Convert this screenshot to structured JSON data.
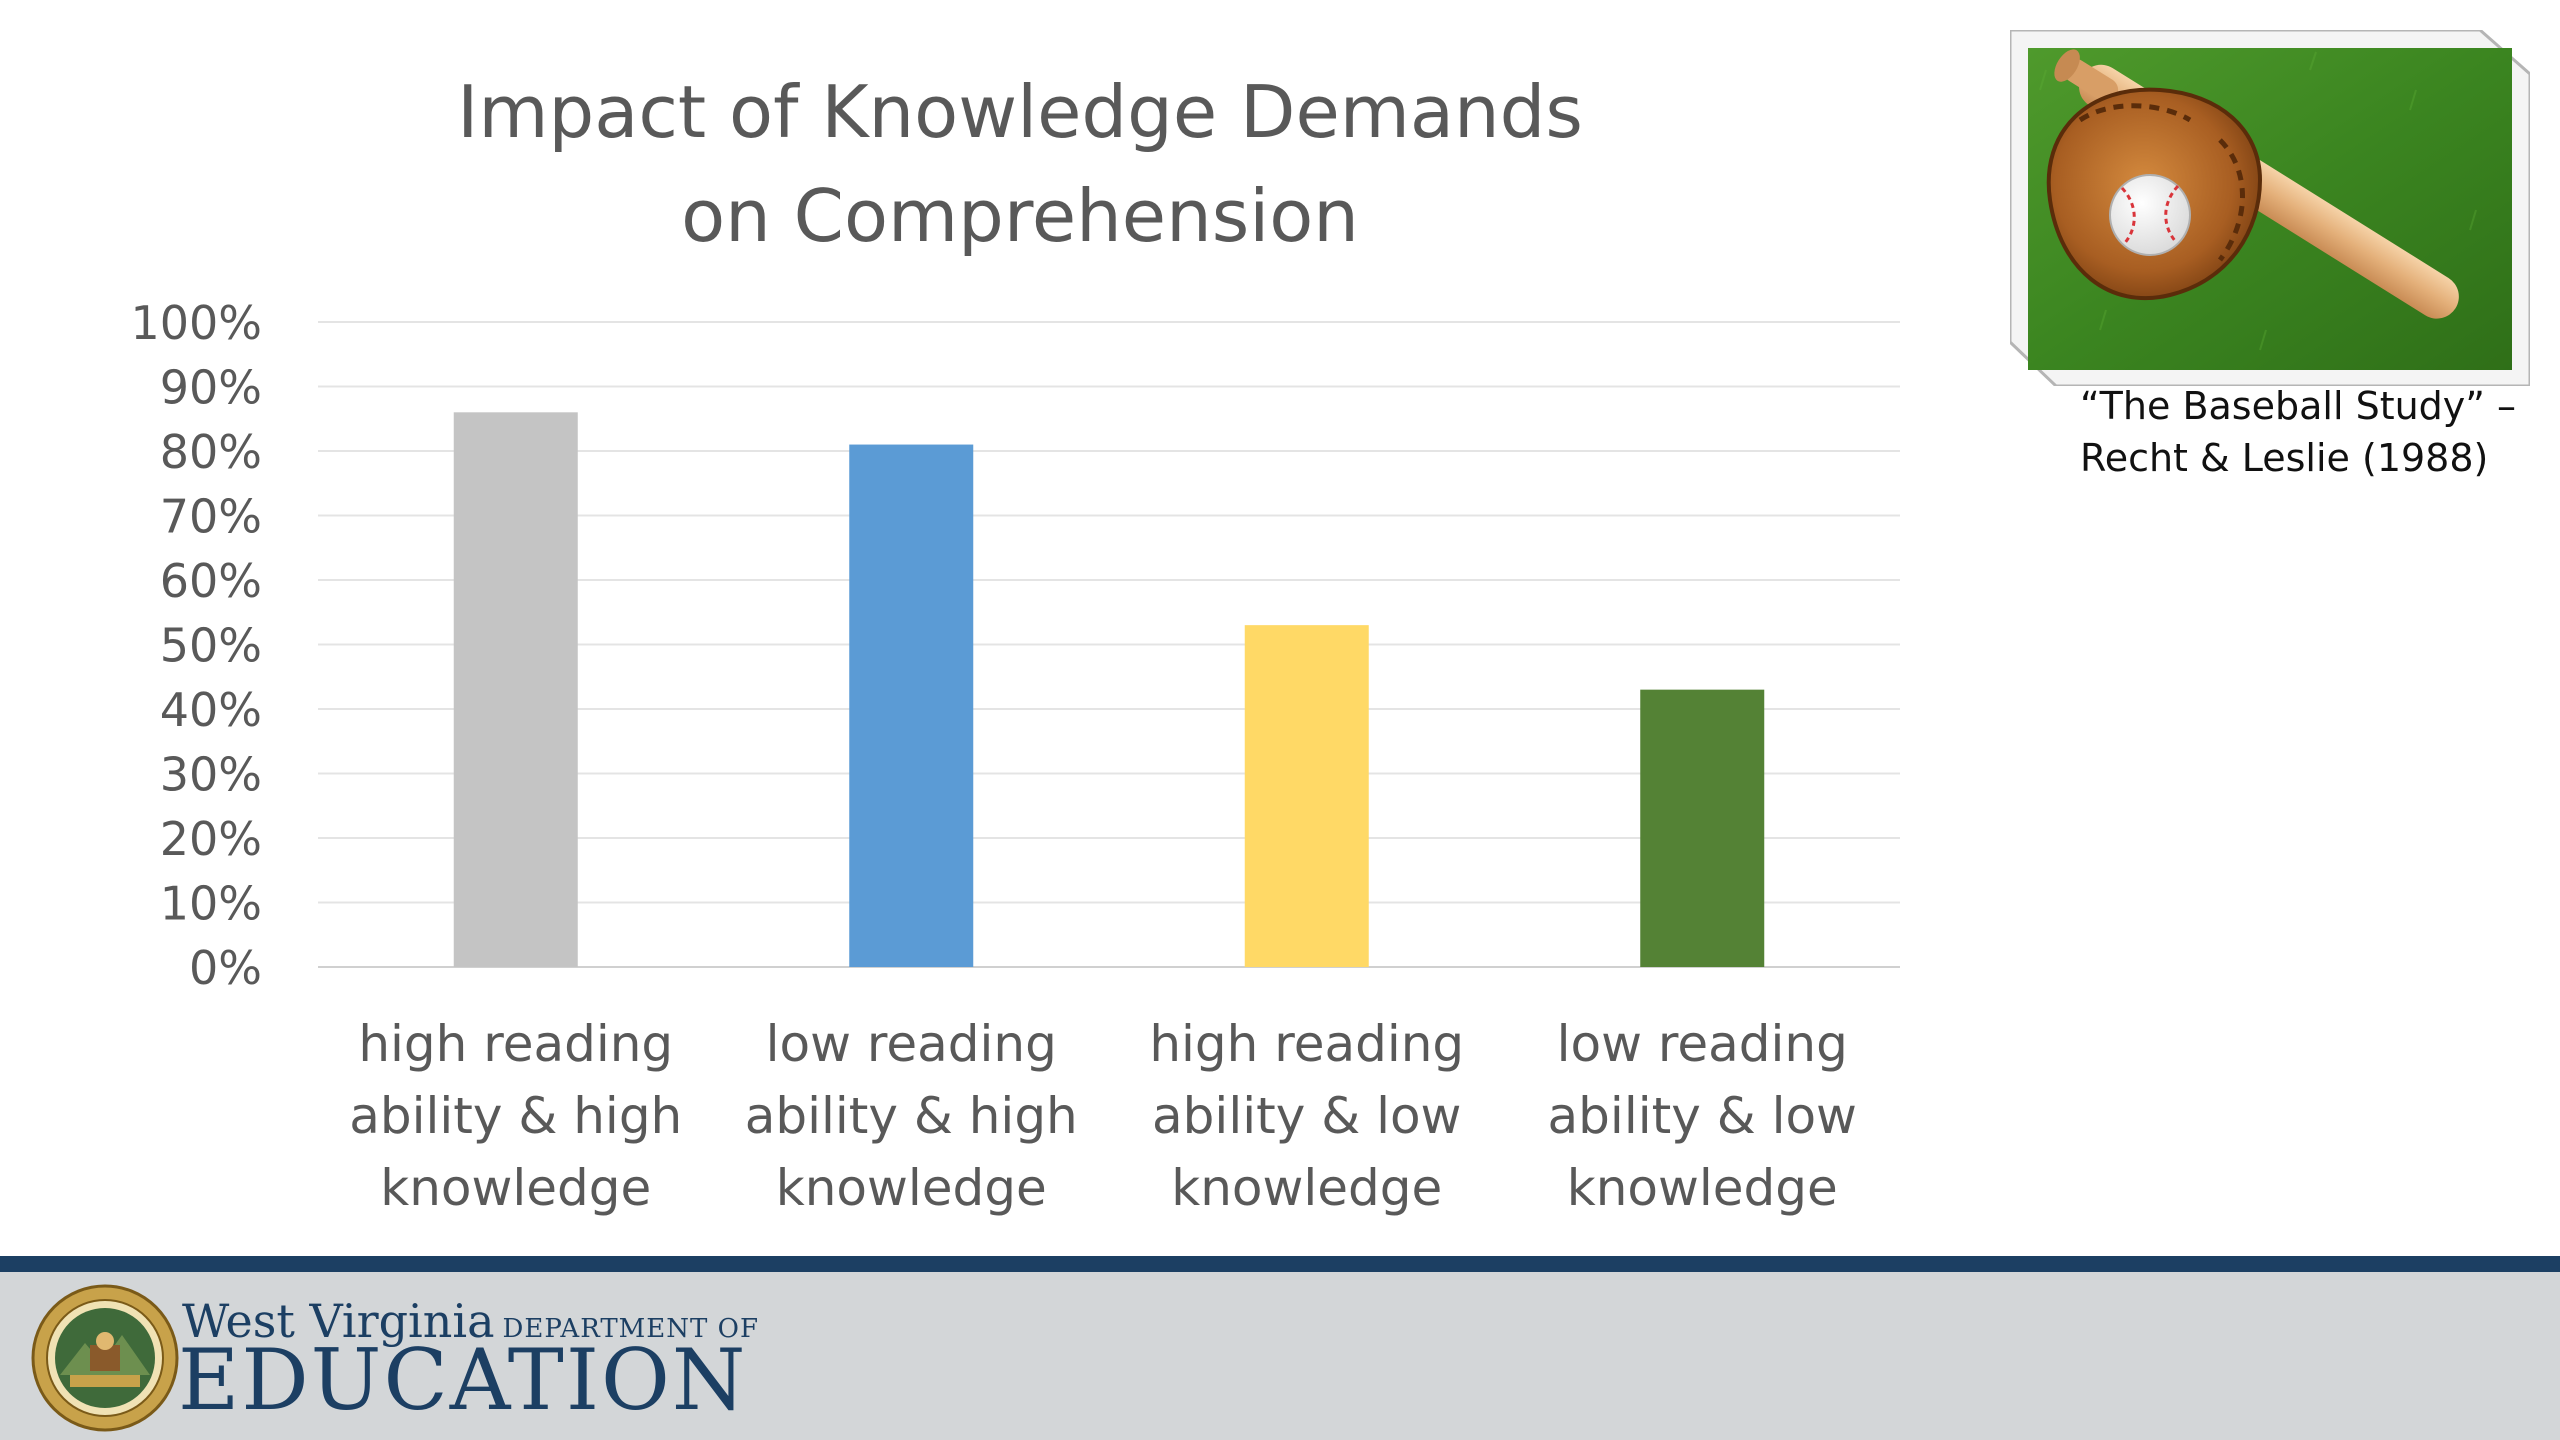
{
  "slide": {
    "title_lines": [
      "Impact of Knowledge Demands",
      "on Comprehension"
    ],
    "caption_lines": [
      "“The Baseball Study” –",
      "Recht & Leslie (1988)"
    ],
    "photo_icon": "baseball-glove-bat-photo"
  },
  "chart_data": {
    "type": "bar",
    "title": "Impact of Knowledge Demands on Comprehension",
    "categories": [
      [
        "high reading",
        "ability & high",
        "knowledge"
      ],
      [
        "low reading",
        "ability & high",
        "knowledge"
      ],
      [
        "high reading",
        "ability & low",
        "knowledge"
      ],
      [
        "low reading",
        "ability &  low",
        "knowledge"
      ]
    ],
    "values": [
      86,
      81,
      53,
      43
    ],
    "colors": [
      "#c4c4c4",
      "#5b9bd5",
      "#ffd966",
      "#548235"
    ],
    "y_ticks": [
      "0%",
      "10%",
      "20%",
      "30%",
      "40%",
      "50%",
      "60%",
      "70%",
      "80%",
      "90%",
      "100%"
    ],
    "ylim": [
      0,
      100
    ],
    "y_unit": "%",
    "grid": true,
    "legend": "none",
    "xlabel": "",
    "ylabel": ""
  },
  "footer": {
    "org_name": "West Virginia",
    "org_dept": "DEPARTMENT OF",
    "org_unit": "EDUCATION",
    "seal_icon": "state-seal-icon",
    "accent": "#1c3f63",
    "band_color": "#d3d6d8"
  }
}
